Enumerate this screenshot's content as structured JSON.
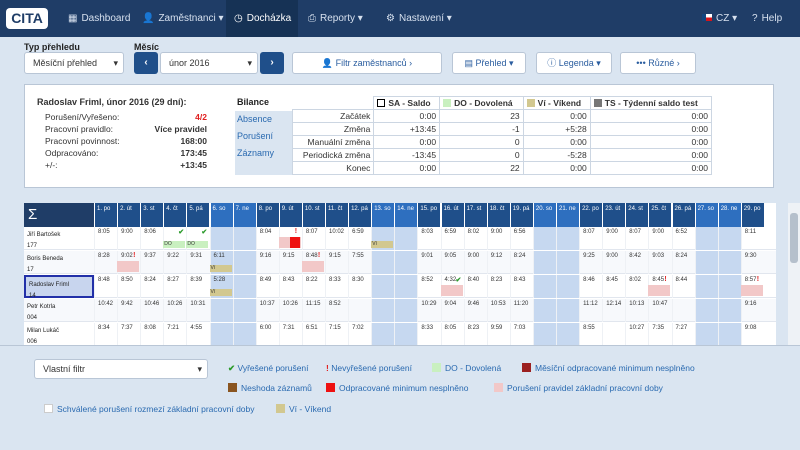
{
  "nav": {
    "logo": "CITA",
    "dashboard": "Dashboard",
    "employees": "Zaměstnanci",
    "attendance": "Docházka",
    "reports": "Reporty",
    "settings": "Nastavení",
    "lang": "CZ",
    "help": "Help"
  },
  "controls": {
    "overview_type_label": "Typ přehledu",
    "overview_type_value": "Měsíční přehled",
    "month_label": "Měsíc",
    "month_value": "únor 2016",
    "filter_employees": "Filtr zaměstnanců",
    "overview": "Přehled",
    "legend": "Legenda",
    "misc": "Různé"
  },
  "summary": {
    "title": "Radoslav Friml, únor 2016 (29 dní):",
    "rows": [
      [
        "Porušení/Vyřešeno:",
        "4/2"
      ],
      [
        "Pracovní pravidlo:",
        "Více pravidel"
      ],
      [
        "Pracovní povinnost:",
        "168:00"
      ],
      [
        "Odpracováno:",
        "173:45"
      ],
      [
        "+/-:",
        "+13:45"
      ]
    ]
  },
  "tabs": [
    "Bilance",
    "Absence",
    "Porušení",
    "Záznamy"
  ],
  "balance": {
    "headers": [
      "SA - Saldo",
      "DO - Dovolená",
      "Ví - Víkend",
      "TS - Týdenní saldo test"
    ],
    "rows": [
      [
        "Začátek",
        "0:00",
        "23",
        "0:00",
        "0:00"
      ],
      [
        "Změna",
        "+13:45",
        "-1",
        "+5:28",
        "0:00"
      ],
      [
        "Manuální změna",
        "0:00",
        "0",
        "0:00",
        "0:00"
      ],
      [
        "Periodická změna",
        "-13:45",
        "0",
        "-5:28",
        "0:00"
      ],
      [
        "Konec",
        "0:00",
        "22",
        "0:00",
        "0:00"
      ]
    ]
  },
  "calendar": {
    "sigma": "Σ",
    "days": [
      "1. po",
      "2. út",
      "3. st",
      "4. čt",
      "5. pá",
      "6. so",
      "7. ne",
      "8. po",
      "9. út",
      "10. st",
      "11. čt",
      "12. pá",
      "13. so",
      "14. ne",
      "15. po",
      "16. út",
      "17. st",
      "18. čt",
      "19. pá",
      "20. so",
      "21. ne",
      "22. po",
      "23. út",
      "24. st",
      "25. čt",
      "26. pá",
      "27. so",
      "28. ne",
      "29. po"
    ],
    "employees": [
      {
        "name": "Jiří Bartošek",
        "id": "177",
        "times": [
          "8:05",
          "9:00",
          "8:06",
          "",
          "",
          "",
          "",
          "8:04",
          "",
          "8:07",
          "10:02",
          "6:59",
          "",
          "",
          "8:03",
          "6:59",
          "8:02",
          "9:00",
          "6:56",
          "",
          "",
          "8:07",
          "9:00",
          "8:07",
          "9:00",
          "6:52",
          "",
          "",
          "8:11"
        ]
      },
      {
        "name": "Boris Beneda",
        "id": "17",
        "times": [
          "8:28",
          "9:02",
          "9:37",
          "9:22",
          "9:31",
          "6:11",
          "",
          "9:16",
          "9:15",
          "8:48",
          "9:15",
          "7:55",
          "",
          "",
          "9:01",
          "9:05",
          "9:00",
          "9:12",
          "8:24",
          "",
          "",
          "9:25",
          "9:00",
          "8:42",
          "9:03",
          "8:24",
          "",
          "",
          "9:30"
        ]
      },
      {
        "name": "Radoslav Friml",
        "id": "14",
        "times": [
          "8:48",
          "8:50",
          "8:24",
          "8:27",
          "8:39",
          "5:28",
          "",
          "8:49",
          "8:43",
          "8:22",
          "8:33",
          "8:30",
          "",
          "",
          "8:52",
          "4:32",
          "8:40",
          "8:23",
          "8:43",
          "",
          "",
          "8:46",
          "8:45",
          "8:02",
          "8:45",
          "8:44",
          "",
          "",
          "8:57"
        ]
      },
      {
        "name": "Petr Kotrla",
        "id": "004",
        "times": [
          "10:42",
          "9:42",
          "10:46",
          "10:26",
          "10:31",
          "",
          "",
          "10:37",
          "10:26",
          "11:15",
          "8:52",
          "",
          "",
          "",
          "10:29",
          "9:04",
          "9:46",
          "10:53",
          "11:20",
          "",
          "",
          "11:12",
          "12:14",
          "10:13",
          "10:47",
          "",
          "",
          "",
          "9:16"
        ]
      },
      {
        "name": "Milan Lukáč",
        "id": "006",
        "times": [
          "8:34",
          "7:37",
          "8:08",
          "7:21",
          "4:55",
          "",
          "",
          "6:00",
          "7:31",
          "6:51",
          "7:15",
          "7:02",
          "",
          "",
          "8:33",
          "8:05",
          "8:23",
          "9:59",
          "7:03",
          "",
          "",
          "8:55",
          "",
          "10:27",
          "7:35",
          "7:27",
          "",
          "",
          "9:08"
        ]
      }
    ]
  },
  "legend": {
    "filter": "Vlastní filtr",
    "items": [
      "Vyřešené porušení",
      "Nevyřešené porušení",
      "DO - Dovolená",
      "Měsíční odpracované minimum nesplněno",
      "Neshoda záznamů",
      "Odpracované minimum nesplněno",
      "Porušení pravidel základní pracovní doby",
      "Schválené porušení rozmezí základní pracovní doby",
      "Ví - Víkend"
    ],
    "colors": [
      "#2a9a2a",
      "#e02020",
      "#c9f0c0",
      "#9b2020",
      "#8a5520",
      "#ee1111",
      "#f2c8c8",
      "#ffffff",
      "#d2c890"
    ]
  },
  "tag_labels": {
    "do": "DO",
    "vi": "Ví"
  }
}
